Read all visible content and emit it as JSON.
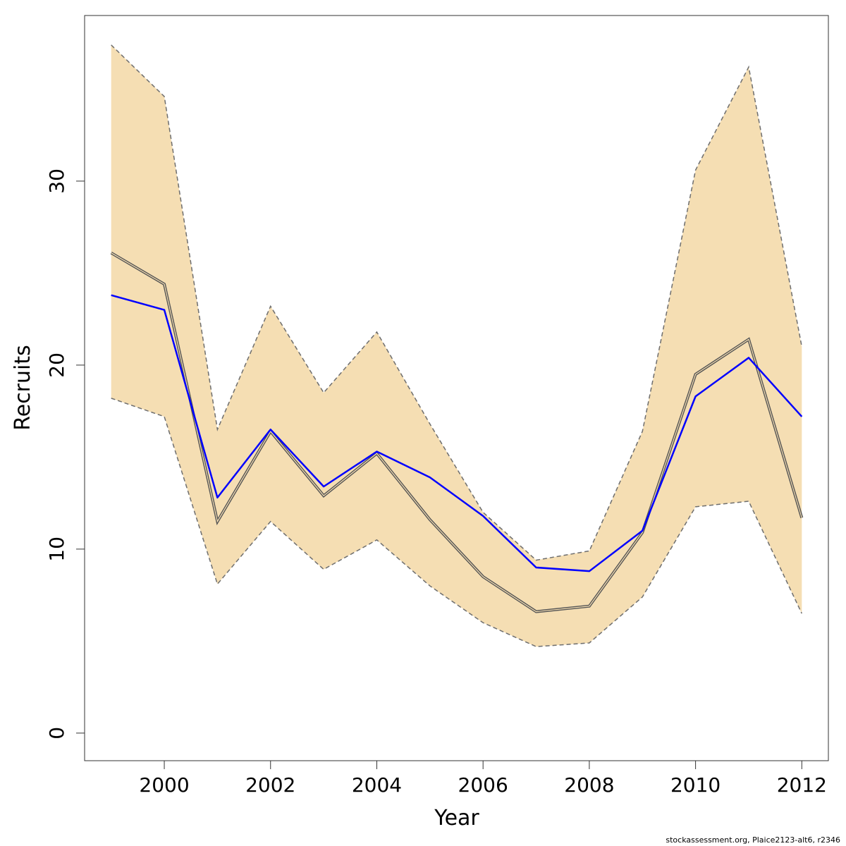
{
  "chart_data": {
    "type": "line",
    "title": "",
    "xlabel": "Year",
    "ylabel": "Recruits",
    "xlim": [
      1998.5,
      2012.5
    ],
    "ylim": [
      -1.5,
      39
    ],
    "x_ticks": [
      2000,
      2002,
      2004,
      2006,
      2008,
      2010,
      2012
    ],
    "y_ticks": [
      0,
      10,
      20,
      30
    ],
    "grid": false,
    "legend": "none",
    "x": [
      1999,
      2000,
      2001,
      2002,
      2003,
      2004,
      2005,
      2006,
      2007,
      2008,
      2009,
      2010,
      2011,
      2012
    ],
    "band": {
      "lower": [
        18.2,
        17.2,
        8.1,
        11.5,
        8.9,
        10.5,
        8.0,
        6.0,
        4.7,
        4.9,
        7.4,
        12.3,
        12.6,
        6.5
      ],
      "upper": [
        37.4,
        34.6,
        16.5,
        23.2,
        18.5,
        21.8,
        16.8,
        12.0,
        9.4,
        9.9,
        16.4,
        30.6,
        36.2,
        21.0
      ],
      "fill": "#f5deb3",
      "stroke": "#6e6e6e"
    },
    "series": [
      {
        "values": [
          26.1,
          24.4,
          11.5,
          16.4,
          12.9,
          15.2,
          11.6,
          8.5,
          6.6,
          6.9,
          10.9,
          19.5,
          21.4,
          11.7
        ],
        "color": "#555555",
        "style": "double-line"
      },
      {
        "values": [
          23.8,
          23.0,
          12.8,
          16.5,
          13.4,
          15.3,
          13.9,
          11.8,
          9.0,
          8.8,
          11.0,
          18.3,
          20.4,
          17.2
        ],
        "color": "#0000ff",
        "style": "solid"
      }
    ]
  },
  "footer": "stockassessment.org, Plaice2123-alt6, r2346"
}
